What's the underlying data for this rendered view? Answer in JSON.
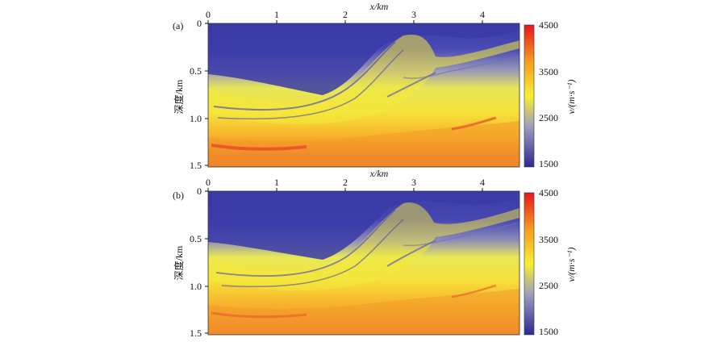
{
  "chart_data": [
    {
      "type": "heatmap",
      "panel_label": "(a)",
      "xlabel": "x/km",
      "ylabel": "深度/km",
      "x_ticks": [
        "0",
        "1",
        "2",
        "3",
        "4"
      ],
      "y_ticks": [
        "0",
        "0.5",
        "1.0",
        "1.5"
      ],
      "xlim": [
        0,
        4.5
      ],
      "ylim": [
        0,
        1.5
      ],
      "colorbar": {
        "label": "v/(m·s⁻¹)",
        "ticks": [
          "4500",
          "3500",
          "2500",
          "1500"
        ],
        "range": [
          1500,
          4500
        ],
        "colors": [
          "#2b2b8f",
          "#6a6ac0",
          "#f2f23a",
          "#f5a623",
          "#e8261e"
        ]
      }
    },
    {
      "type": "heatmap",
      "panel_label": "(b)",
      "xlabel": "x/km",
      "ylabel": "深度/km",
      "x_ticks": [
        "0",
        "1",
        "2",
        "3",
        "4"
      ],
      "y_ticks": [
        "0",
        "0.5",
        "1.0",
        "1.5"
      ],
      "xlim": [
        0,
        4.5
      ],
      "ylim": [
        0,
        1.5
      ],
      "colorbar": {
        "label": "v/(m·s⁻¹)",
        "ticks": [
          "4500",
          "3500",
          "2500",
          "1500"
        ],
        "range": [
          1500,
          4500
        ],
        "colors": [
          "#2b2b8f",
          "#6a6ac0",
          "#f2f23a",
          "#f5a623",
          "#e8261e"
        ]
      }
    }
  ]
}
